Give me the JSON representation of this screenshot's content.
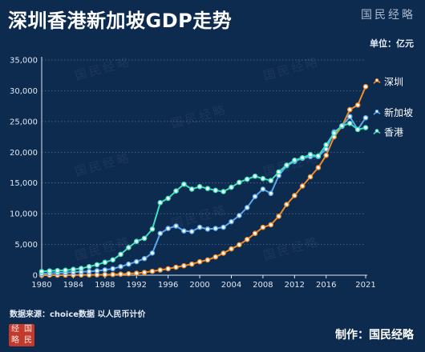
{
  "title": "深圳香港新加坡GDP走势",
  "brand": "国民经略",
  "unit_label": "单位：亿元",
  "source": "数据来源：choice数据 以人民币计价",
  "credit": "制作：国民经略",
  "logo_chars": [
    "经",
    "国",
    "略",
    "民"
  ],
  "chart_data": {
    "type": "line",
    "x": [
      1980,
      1981,
      1982,
      1983,
      1984,
      1985,
      1986,
      1987,
      1988,
      1989,
      1990,
      1991,
      1992,
      1993,
      1994,
      1995,
      1996,
      1997,
      1998,
      1999,
      2000,
      2001,
      2002,
      2003,
      2004,
      2005,
      2006,
      2007,
      2008,
      2009,
      2010,
      2011,
      2012,
      2013,
      2014,
      2015,
      2016,
      2017,
      2018,
      2019,
      2020,
      2021
    ],
    "xticks": [
      1980,
      1984,
      1988,
      1992,
      1996,
      2000,
      2004,
      2008,
      2012,
      2016,
      2021
    ],
    "ylim": [
      0,
      35000
    ],
    "yticks": [
      0,
      5000,
      10000,
      15000,
      20000,
      25000,
      30000,
      35000
    ],
    "ytick_labels": [
      "0",
      "5,000",
      "10,000",
      "15,000",
      "20,000",
      "25,000",
      "30,000",
      "35,000"
    ],
    "grid": "horizontal-dotted",
    "legend_position": "right-inline",
    "series": [
      {
        "name": "深圳",
        "color": "#f28c28",
        "values": [
          3,
          5,
          8,
          13,
          23,
          39,
          42,
          56,
          87,
          116,
          172,
          237,
          317,
          454,
          635,
          843,
          1048,
          1297,
          1535,
          1804,
          2187,
          2482,
          2970,
          3586,
          4282,
          4951,
          5814,
          6801,
          7787,
          8201,
          9582,
          11506,
          12950,
          14500,
          16002,
          17503,
          19493,
          22490,
          24222,
          26927,
          27670,
          30665
        ]
      },
      {
        "name": "新加坡",
        "color": "#5aa8f0",
        "values": [
          250,
          300,
          370,
          430,
          500,
          560,
          600,
          720,
          860,
          1050,
          1400,
          1800,
          2200,
          2700,
          3600,
          6800,
          7600,
          8000,
          7200,
          7100,
          7800,
          7500,
          7600,
          7800,
          8700,
          9700,
          11000,
          12800,
          14000,
          13300,
          16200,
          17800,
          18500,
          19000,
          19300,
          19300,
          20500,
          23300,
          24200,
          25800,
          23700,
          25600
        ]
      },
      {
        "name": "香港",
        "color": "#3fe0c0",
        "values": [
          600,
          700,
          750,
          800,
          950,
          1100,
          1400,
          1700,
          2100,
          2500,
          3400,
          4500,
          5500,
          6000,
          7500,
          11800,
          12500,
          13700,
          14800,
          14000,
          14400,
          14100,
          13800,
          13600,
          14300,
          15100,
          15600,
          16100,
          15700,
          15400,
          16800,
          17900,
          18700,
          19100,
          19600,
          19400,
          21200,
          23100,
          24300,
          24700,
          23700,
          24000
        ]
      }
    ]
  }
}
